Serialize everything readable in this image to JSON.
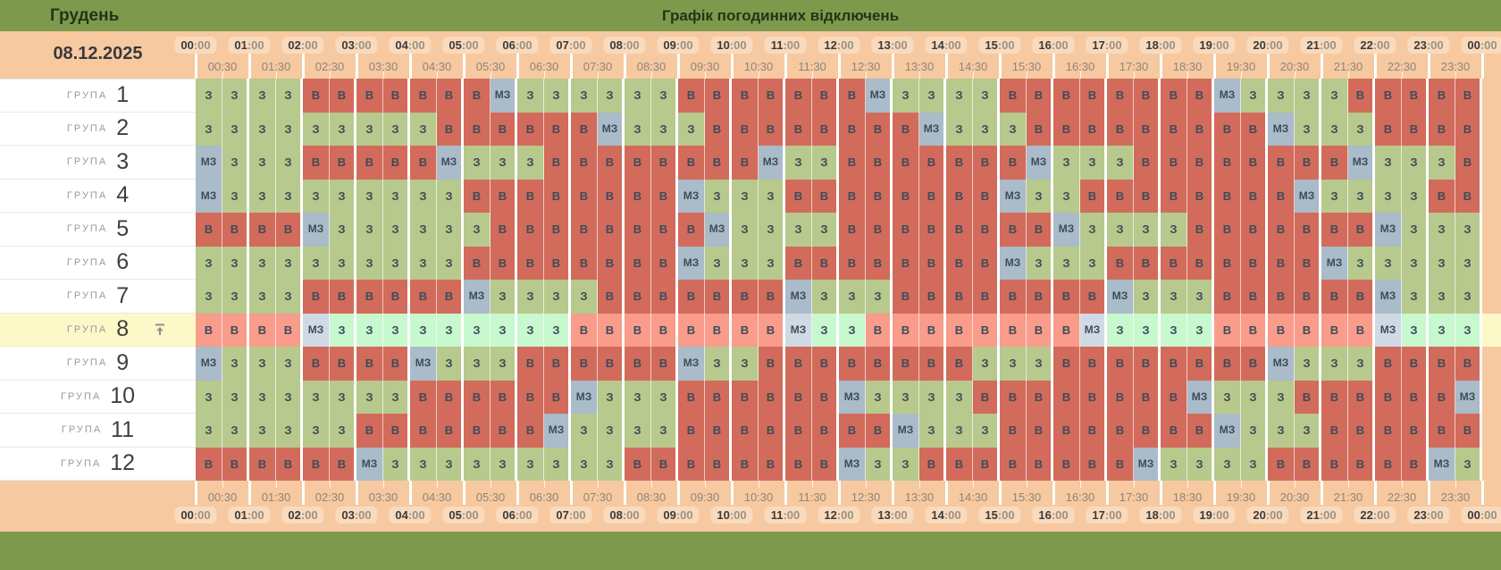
{
  "topbar": {
    "month": "Грудень",
    "title": "Графік погодинних відключень"
  },
  "date": "08.12.2025",
  "time_scale": {
    "hours": [
      "00",
      "01",
      "02",
      "03",
      "04",
      "05",
      "06",
      "07",
      "08",
      "09",
      "10",
      "11",
      "12",
      "13",
      "14",
      "15",
      "16",
      "17",
      "18",
      "19",
      "20",
      "21",
      "22",
      "23",
      "00"
    ],
    "hour_suffix": ":00",
    "half_labels": [
      "00:30",
      "01:30",
      "02:30",
      "03:30",
      "04:30",
      "05:30",
      "06:30",
      "07:30",
      "08:30",
      "09:30",
      "10:30",
      "11:30",
      "12:30",
      "13:30",
      "14:30",
      "15:30",
      "16:30",
      "17:30",
      "18:30",
      "19:30",
      "20:30",
      "21:30",
      "22:30",
      "23:30"
    ]
  },
  "cell_colors": {
    "on": "#b7c98c",
    "off": "#d26b5b",
    "maybe": "#aabbc9",
    "on_hl": "#c8f8ce",
    "off_hl": "#f99c8c",
    "maybe_hl": "#cfdae5"
  },
  "accent_colors": {
    "topbar": "#7d9a4c",
    "band": "#f6c9a1",
    "highlight_row": "#fdf8c8"
  },
  "groups": [
    {
      "label": "ГРУПА",
      "number": "1",
      "highlighted": false,
      "cells": [
        "З",
        "З",
        "З",
        "З",
        "В",
        "В",
        "В",
        "В",
        "В",
        "В",
        "В",
        "МЗ",
        "З",
        "З",
        "З",
        "З",
        "З",
        "З",
        "В",
        "В",
        "В",
        "В",
        "В",
        "В",
        "В",
        "МЗ",
        "З",
        "З",
        "З",
        "З",
        "В",
        "В",
        "В",
        "В",
        "В",
        "В",
        "В",
        "В",
        "МЗ",
        "З",
        "З",
        "З",
        "З",
        "В",
        "В",
        "В",
        "В",
        "В"
      ]
    },
    {
      "label": "ГРУПА",
      "number": "2",
      "highlighted": false,
      "cells": [
        "З",
        "З",
        "З",
        "З",
        "З",
        "З",
        "З",
        "З",
        "З",
        "В",
        "В",
        "В",
        "В",
        "В",
        "В",
        "МЗ",
        "З",
        "З",
        "З",
        "В",
        "В",
        "В",
        "В",
        "В",
        "В",
        "В",
        "В",
        "МЗ",
        "З",
        "З",
        "З",
        "В",
        "В",
        "В",
        "В",
        "В",
        "В",
        "В",
        "В",
        "В",
        "МЗ",
        "З",
        "З",
        "З",
        "В",
        "В",
        "В",
        "В"
      ]
    },
    {
      "label": "ГРУПА",
      "number": "3",
      "highlighted": false,
      "cells": [
        "МЗ",
        "З",
        "З",
        "З",
        "В",
        "В",
        "В",
        "В",
        "В",
        "МЗ",
        "З",
        "З",
        "З",
        "В",
        "В",
        "В",
        "В",
        "В",
        "В",
        "В",
        "В",
        "МЗ",
        "З",
        "З",
        "В",
        "В",
        "В",
        "В",
        "В",
        "В",
        "В",
        "МЗ",
        "З",
        "З",
        "З",
        "В",
        "В",
        "В",
        "В",
        "В",
        "В",
        "В",
        "В",
        "МЗ",
        "З",
        "З",
        "З",
        "В"
      ]
    },
    {
      "label": "ГРУПА",
      "number": "4",
      "highlighted": false,
      "cells": [
        "МЗ",
        "З",
        "З",
        "З",
        "З",
        "З",
        "З",
        "З",
        "З",
        "З",
        "В",
        "В",
        "В",
        "В",
        "В",
        "В",
        "В",
        "В",
        "МЗ",
        "З",
        "З",
        "З",
        "В",
        "В",
        "В",
        "В",
        "В",
        "В",
        "В",
        "В",
        "МЗ",
        "З",
        "З",
        "В",
        "В",
        "В",
        "В",
        "В",
        "В",
        "В",
        "В",
        "МЗ",
        "З",
        "З",
        "З",
        "З",
        "В",
        "В"
      ]
    },
    {
      "label": "ГРУПА",
      "number": "5",
      "highlighted": false,
      "cells": [
        "В",
        "В",
        "В",
        "В",
        "МЗ",
        "З",
        "З",
        "З",
        "З",
        "З",
        "З",
        "В",
        "В",
        "В",
        "В",
        "В",
        "В",
        "В",
        "В",
        "МЗ",
        "З",
        "З",
        "З",
        "З",
        "В",
        "В",
        "В",
        "В",
        "В",
        "В",
        "В",
        "В",
        "МЗ",
        "З",
        "З",
        "З",
        "З",
        "В",
        "В",
        "В",
        "В",
        "В",
        "В",
        "В",
        "МЗ",
        "З",
        "З",
        "З"
      ]
    },
    {
      "label": "ГРУПА",
      "number": "6",
      "highlighted": false,
      "cells": [
        "З",
        "З",
        "З",
        "З",
        "З",
        "З",
        "З",
        "З",
        "З",
        "З",
        "В",
        "В",
        "В",
        "В",
        "В",
        "В",
        "В",
        "В",
        "МЗ",
        "З",
        "З",
        "З",
        "В",
        "В",
        "В",
        "В",
        "В",
        "В",
        "В",
        "В",
        "МЗ",
        "З",
        "З",
        "З",
        "В",
        "В",
        "В",
        "В",
        "В",
        "В",
        "В",
        "В",
        "МЗ",
        "З",
        "З",
        "З",
        "З",
        "З"
      ]
    },
    {
      "label": "ГРУПА",
      "number": "7",
      "highlighted": false,
      "cells": [
        "З",
        "З",
        "З",
        "З",
        "В",
        "В",
        "В",
        "В",
        "В",
        "В",
        "МЗ",
        "З",
        "З",
        "З",
        "З",
        "В",
        "В",
        "В",
        "В",
        "В",
        "В",
        "В",
        "МЗ",
        "З",
        "З",
        "З",
        "В",
        "В",
        "В",
        "В",
        "В",
        "В",
        "В",
        "В",
        "МЗ",
        "З",
        "З",
        "З",
        "В",
        "В",
        "В",
        "В",
        "В",
        "В",
        "МЗ",
        "З",
        "З",
        "З"
      ]
    },
    {
      "label": "ГРУПА",
      "number": "8",
      "highlighted": true,
      "cells": [
        "В",
        "В",
        "В",
        "В",
        "МЗ",
        "З",
        "З",
        "З",
        "З",
        "З",
        "З",
        "З",
        "З",
        "З",
        "В",
        "В",
        "В",
        "В",
        "В",
        "В",
        "В",
        "В",
        "МЗ",
        "З",
        "З",
        "В",
        "В",
        "В",
        "В",
        "В",
        "В",
        "В",
        "В",
        "МЗ",
        "З",
        "З",
        "З",
        "З",
        "В",
        "В",
        "В",
        "В",
        "В",
        "В",
        "МЗ",
        "З",
        "З",
        "З"
      ]
    },
    {
      "label": "ГРУПА",
      "number": "9",
      "highlighted": false,
      "cells": [
        "МЗ",
        "З",
        "З",
        "З",
        "В",
        "В",
        "В",
        "В",
        "МЗ",
        "З",
        "З",
        "З",
        "В",
        "В",
        "В",
        "В",
        "В",
        "В",
        "МЗ",
        "З",
        "З",
        "В",
        "В",
        "В",
        "В",
        "В",
        "В",
        "В",
        "В",
        "З",
        "З",
        "З",
        "В",
        "В",
        "В",
        "В",
        "В",
        "В",
        "В",
        "В",
        "МЗ",
        "З",
        "З",
        "З",
        "В",
        "В",
        "В",
        "В"
      ]
    },
    {
      "label": "ГРУПА",
      "number": "10",
      "highlighted": false,
      "cells": [
        "З",
        "З",
        "З",
        "З",
        "З",
        "З",
        "З",
        "З",
        "В",
        "В",
        "В",
        "В",
        "В",
        "В",
        "МЗ",
        "З",
        "З",
        "З",
        "В",
        "В",
        "В",
        "В",
        "В",
        "В",
        "МЗ",
        "З",
        "З",
        "З",
        "З",
        "В",
        "В",
        "В",
        "В",
        "В",
        "В",
        "В",
        "В",
        "МЗ",
        "З",
        "З",
        "З",
        "В",
        "В",
        "В",
        "В",
        "В",
        "В",
        "МЗ"
      ]
    },
    {
      "label": "ГРУПА",
      "number": "11",
      "highlighted": false,
      "cells": [
        "З",
        "З",
        "З",
        "З",
        "З",
        "З",
        "В",
        "В",
        "В",
        "В",
        "В",
        "В",
        "В",
        "МЗ",
        "З",
        "З",
        "З",
        "З",
        "В",
        "В",
        "В",
        "В",
        "В",
        "В",
        "В",
        "В",
        "МЗ",
        "З",
        "З",
        "З",
        "В",
        "В",
        "В",
        "В",
        "В",
        "В",
        "В",
        "В",
        "МЗ",
        "З",
        "З",
        "З",
        "В",
        "В",
        "В",
        "В",
        "В",
        "В"
      ]
    },
    {
      "label": "ГРУПА",
      "number": "12",
      "highlighted": false,
      "cells": [
        "В",
        "В",
        "В",
        "В",
        "В",
        "В",
        "МЗ",
        "З",
        "З",
        "З",
        "З",
        "З",
        "З",
        "З",
        "З",
        "З",
        "В",
        "В",
        "В",
        "В",
        "В",
        "В",
        "В",
        "В",
        "МЗ",
        "З",
        "З",
        "В",
        "В",
        "В",
        "В",
        "В",
        "В",
        "В",
        "В",
        "МЗ",
        "З",
        "З",
        "З",
        "З",
        "В",
        "В",
        "В",
        "В",
        "В",
        "В",
        "МЗ",
        "З"
      ]
    }
  ]
}
